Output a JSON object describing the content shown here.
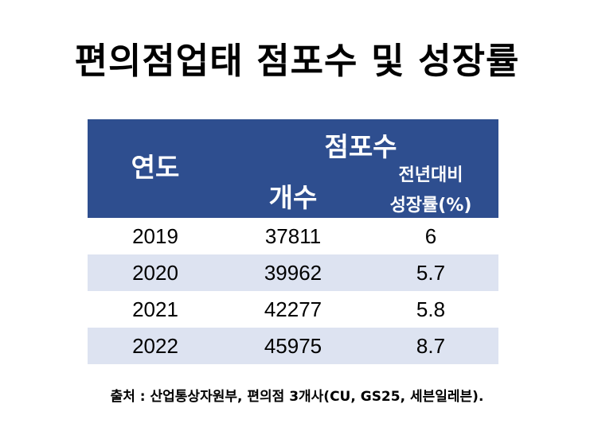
{
  "title": "편의점업태 점포수 및 성장률",
  "table": {
    "header_year": "연도",
    "header_group": "점포수",
    "header_count": "개수",
    "header_growth_line1": "전년대비",
    "header_growth_line2": "성장률(%)"
  },
  "source": "출처 : 산업통상자원부, 편의점 3개사(CU, GS25, 세븐일레븐).",
  "chart_data": {
    "type": "table",
    "title": "편의점업태 점포수 및 성장률",
    "columns": [
      "연도",
      "개수",
      "전년대비 성장률(%)"
    ],
    "rows": [
      {
        "year": "2019",
        "count": "37811",
        "growth": "6"
      },
      {
        "year": "2020",
        "count": "39962",
        "growth": "5.7"
      },
      {
        "year": "2021",
        "count": "42277",
        "growth": "5.8"
      },
      {
        "year": "2022",
        "count": "45975",
        "growth": "8.7"
      }
    ]
  }
}
